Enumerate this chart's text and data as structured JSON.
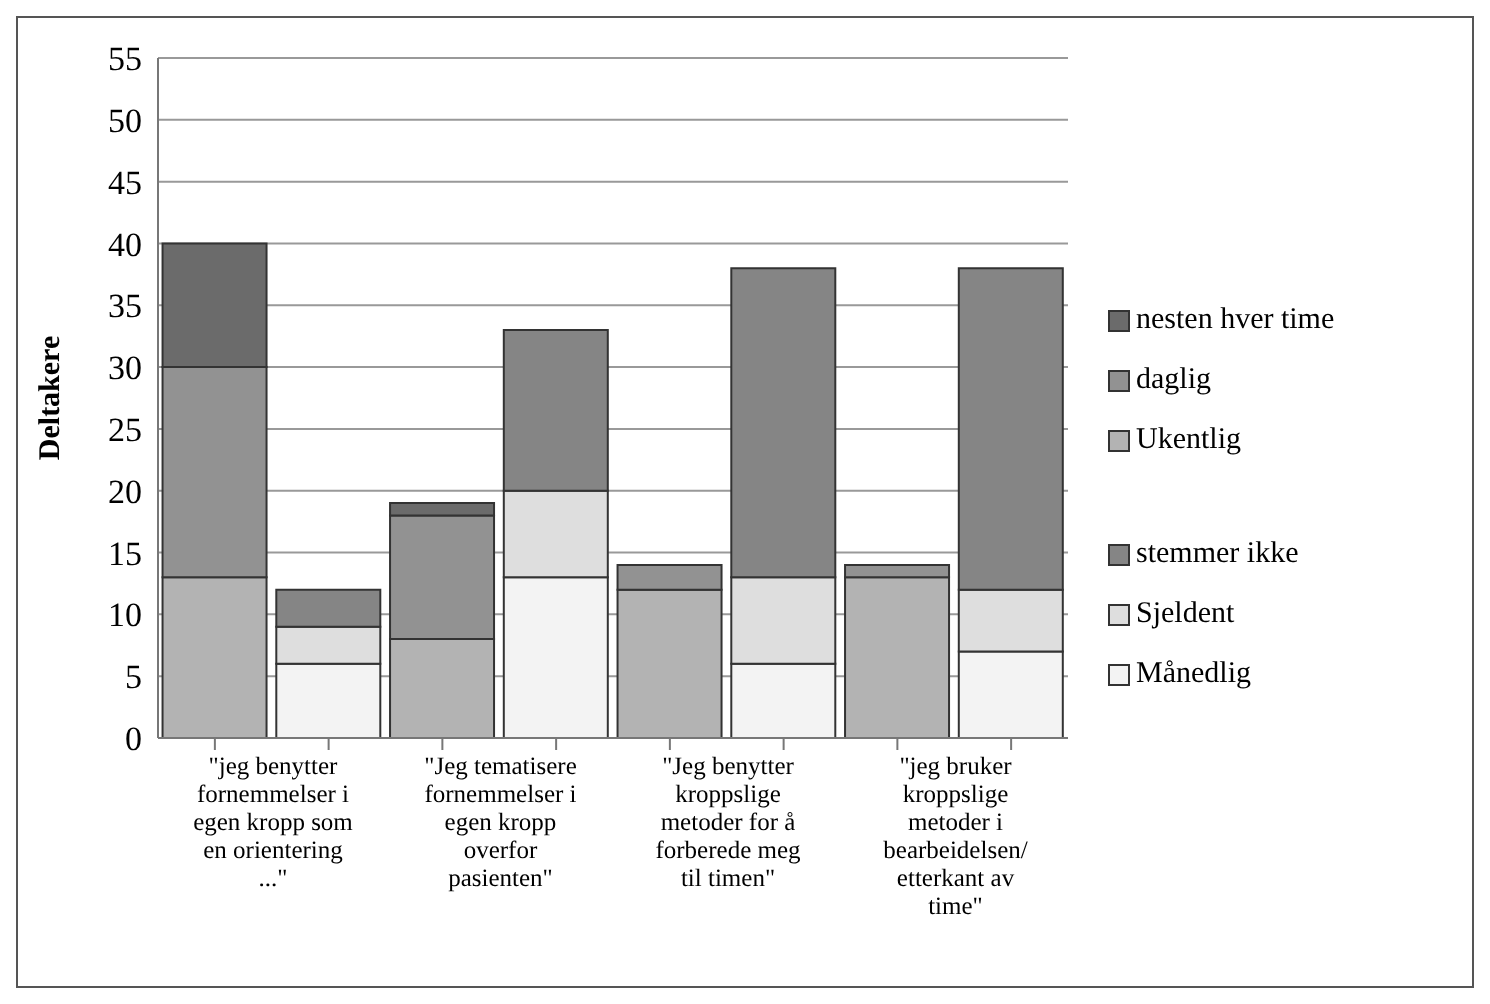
{
  "chart_data": {
    "type": "bar",
    "stacked": true,
    "ylabel": "Deltakere",
    "categories": [
      "\"jeg benytter fornemmelser i egen kropp som en orientering ...\"",
      null,
      "\"Jeg tematisere fornemmelser i egen kropp overfor pasienten\"",
      null,
      "\"Jeg benytter kroppslige metoder for å forberede meg til timen\"",
      null,
      "\"jeg bruker kroppslige metoder i bearbeidelsen/ etterkant av time\"",
      null
    ],
    "series": [
      {
        "name": "Ukentlig",
        "color": "#b3b3b3",
        "values": [
          13,
          null,
          8,
          null,
          12,
          null,
          13,
          null
        ]
      },
      {
        "name": "daglig",
        "color": "#929292",
        "values": [
          17,
          null,
          10,
          null,
          2,
          null,
          1,
          null
        ]
      },
      {
        "name": "nesten hver time",
        "color": "#6b6b6b",
        "values": [
          10,
          null,
          1,
          null,
          0,
          null,
          0,
          null
        ]
      },
      {
        "name": "Månedlig",
        "color": "#f3f3f3",
        "values": [
          null,
          6,
          null,
          13,
          null,
          6,
          null,
          7
        ]
      },
      {
        "name": "Sjeldent",
        "color": "#dedede",
        "values": [
          null,
          3,
          null,
          7,
          null,
          7,
          null,
          5
        ]
      },
      {
        "name": "stemmer ikke",
        "color": "#858585",
        "values": [
          null,
          3,
          null,
          13,
          null,
          25,
          null,
          26
        ]
      }
    ],
    "ylim": [
      0,
      55
    ],
    "yticks": [
      0,
      5,
      10,
      15,
      20,
      25,
      30,
      35,
      40,
      45,
      50,
      55
    ],
    "grid": "y",
    "legend": "right"
  }
}
